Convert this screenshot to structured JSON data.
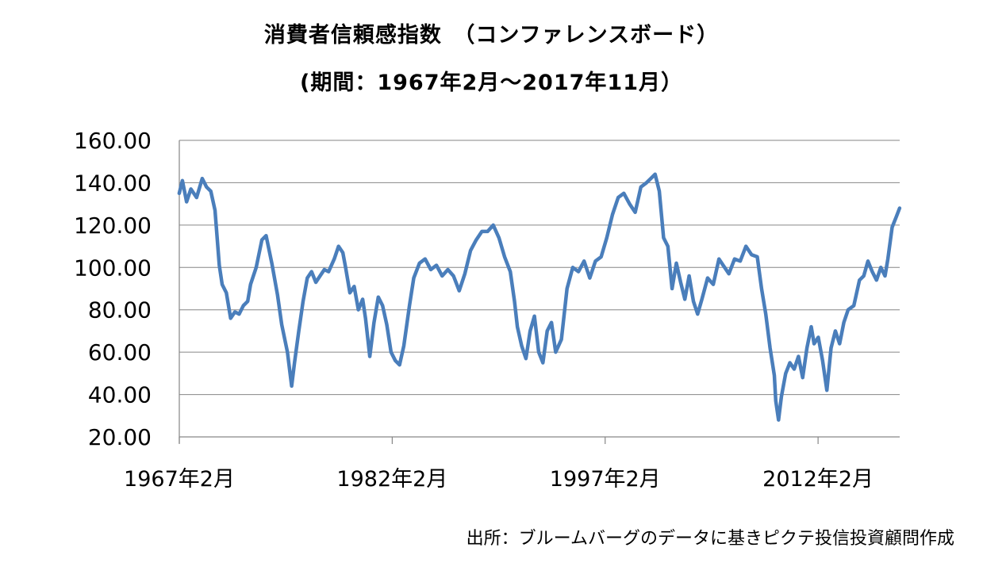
{
  "title": "消費者信頼感指数　（コンファレンスボード）",
  "subtitle": "(期間：1967年2月～2017年11月）",
  "source": "出所：ブルームバーグのデータに基きピクテ投信投資顧問作成",
  "colors": {
    "line": "#4A7EBB",
    "grid": "#868686",
    "axis": "#868686"
  },
  "chart_data": {
    "type": "line",
    "title": "消費者信頼感指数　（コンファレンスボード）",
    "subtitle": "(期間：1967年2月～2017年11月）",
    "xlabel": "",
    "ylabel": "",
    "ylim": [
      20,
      160
    ],
    "yticks": [
      "20.00",
      "40.00",
      "60.00",
      "80.00",
      "100.00",
      "120.00",
      "140.00",
      "160.00"
    ],
    "xlim": [
      1967.083,
      2017.833
    ],
    "xtick_positions": [
      1967.083,
      1982.083,
      1997.083,
      2012.083
    ],
    "xtick_labels": [
      "1967年2月",
      "1982年2月",
      "1997年2月",
      "2012年2月"
    ],
    "grid": "horizontal",
    "legend": "none",
    "x": [
      1967.08,
      1967.3,
      1967.6,
      1967.9,
      1968.3,
      1968.7,
      1969.0,
      1969.3,
      1969.6,
      1969.9,
      1970.1,
      1970.4,
      1970.7,
      1971.0,
      1971.3,
      1971.6,
      1971.9,
      1972.1,
      1972.5,
      1972.9,
      1973.2,
      1973.6,
      1974.0,
      1974.3,
      1974.7,
      1975.0,
      1975.2,
      1975.5,
      1975.8,
      1976.1,
      1976.4,
      1976.7,
      1977.0,
      1977.3,
      1977.6,
      1978.0,
      1978.3,
      1978.6,
      1978.8,
      1979.1,
      1979.4,
      1979.7,
      1980.0,
      1980.2,
      1980.5,
      1980.8,
      1981.1,
      1981.4,
      1981.7,
      1982.0,
      1982.3,
      1982.6,
      1982.9,
      1983.3,
      1983.6,
      1984.0,
      1984.4,
      1984.8,
      1985.2,
      1985.6,
      1986.0,
      1986.4,
      1986.8,
      1987.2,
      1987.6,
      1988.0,
      1988.4,
      1988.8,
      1989.2,
      1989.6,
      1990.0,
      1990.4,
      1990.7,
      1990.9,
      1991.2,
      1991.5,
      1991.8,
      1992.1,
      1992.4,
      1992.7,
      1993.0,
      1993.3,
      1993.6,
      1994.0,
      1994.4,
      1994.8,
      1995.2,
      1995.6,
      1996.0,
      1996.4,
      1996.8,
      1997.2,
      1997.6,
      1998.0,
      1998.4,
      1998.8,
      1999.2,
      1999.6,
      2000.0,
      2000.3,
      2000.6,
      2000.9,
      2001.2,
      2001.5,
      2001.8,
      2002.1,
      2002.4,
      2002.7,
      2003.0,
      2003.3,
      2003.6,
      2003.9,
      2004.3,
      2004.7,
      2005.1,
      2005.5,
      2005.8,
      2006.2,
      2006.6,
      2007.0,
      2007.4,
      2007.8,
      2008.1,
      2008.4,
      2008.7,
      2009.0,
      2009.1,
      2009.3,
      2009.5,
      2009.8,
      2010.1,
      2010.4,
      2010.7,
      2011.0,
      2011.3,
      2011.6,
      2011.8,
      2012.1,
      2012.4,
      2012.7,
      2013.0,
      2013.3,
      2013.6,
      2013.9,
      2014.2,
      2014.6,
      2015.0,
      2015.3,
      2015.6,
      2015.9,
      2016.2,
      2016.5,
      2016.8,
      2017.0,
      2017.3,
      2017.6,
      2017.83
    ],
    "series": [
      {
        "name": "",
        "values": [
          135,
          141,
          131,
          137,
          133,
          142,
          138,
          136,
          127,
          101,
          92,
          88,
          76,
          79,
          78,
          82,
          84,
          92,
          100,
          113,
          115,
          102,
          87,
          73,
          60,
          44,
          55,
          70,
          84,
          95,
          98,
          93,
          96,
          99,
          98,
          104,
          110,
          107,
          100,
          88,
          91,
          80,
          85,
          76,
          58,
          74,
          86,
          82,
          73,
          60,
          56,
          54,
          63,
          82,
          95,
          102,
          104,
          99,
          101,
          96,
          99,
          96,
          89,
          97,
          108,
          113,
          117,
          117,
          120,
          114,
          105,
          98,
          84,
          72,
          63,
          57,
          70,
          77,
          60,
          55,
          70,
          74,
          60,
          66,
          90,
          100,
          98,
          103,
          95,
          103,
          105,
          114,
          125,
          133,
          135,
          130,
          126,
          138,
          140,
          142,
          144,
          136,
          114,
          110,
          90,
          102,
          93,
          85,
          96,
          84,
          78,
          85,
          95,
          92,
          104,
          100,
          97,
          104,
          103,
          110,
          106,
          105,
          90,
          78,
          62,
          49,
          37,
          28,
          39,
          50,
          55,
          52,
          58,
          48,
          62,
          72,
          64,
          67,
          56,
          42,
          62,
          70,
          64,
          74,
          80,
          82,
          94,
          96,
          103,
          98,
          94,
          100,
          96,
          104,
          119,
          124,
          128
        ]
      }
    ]
  }
}
